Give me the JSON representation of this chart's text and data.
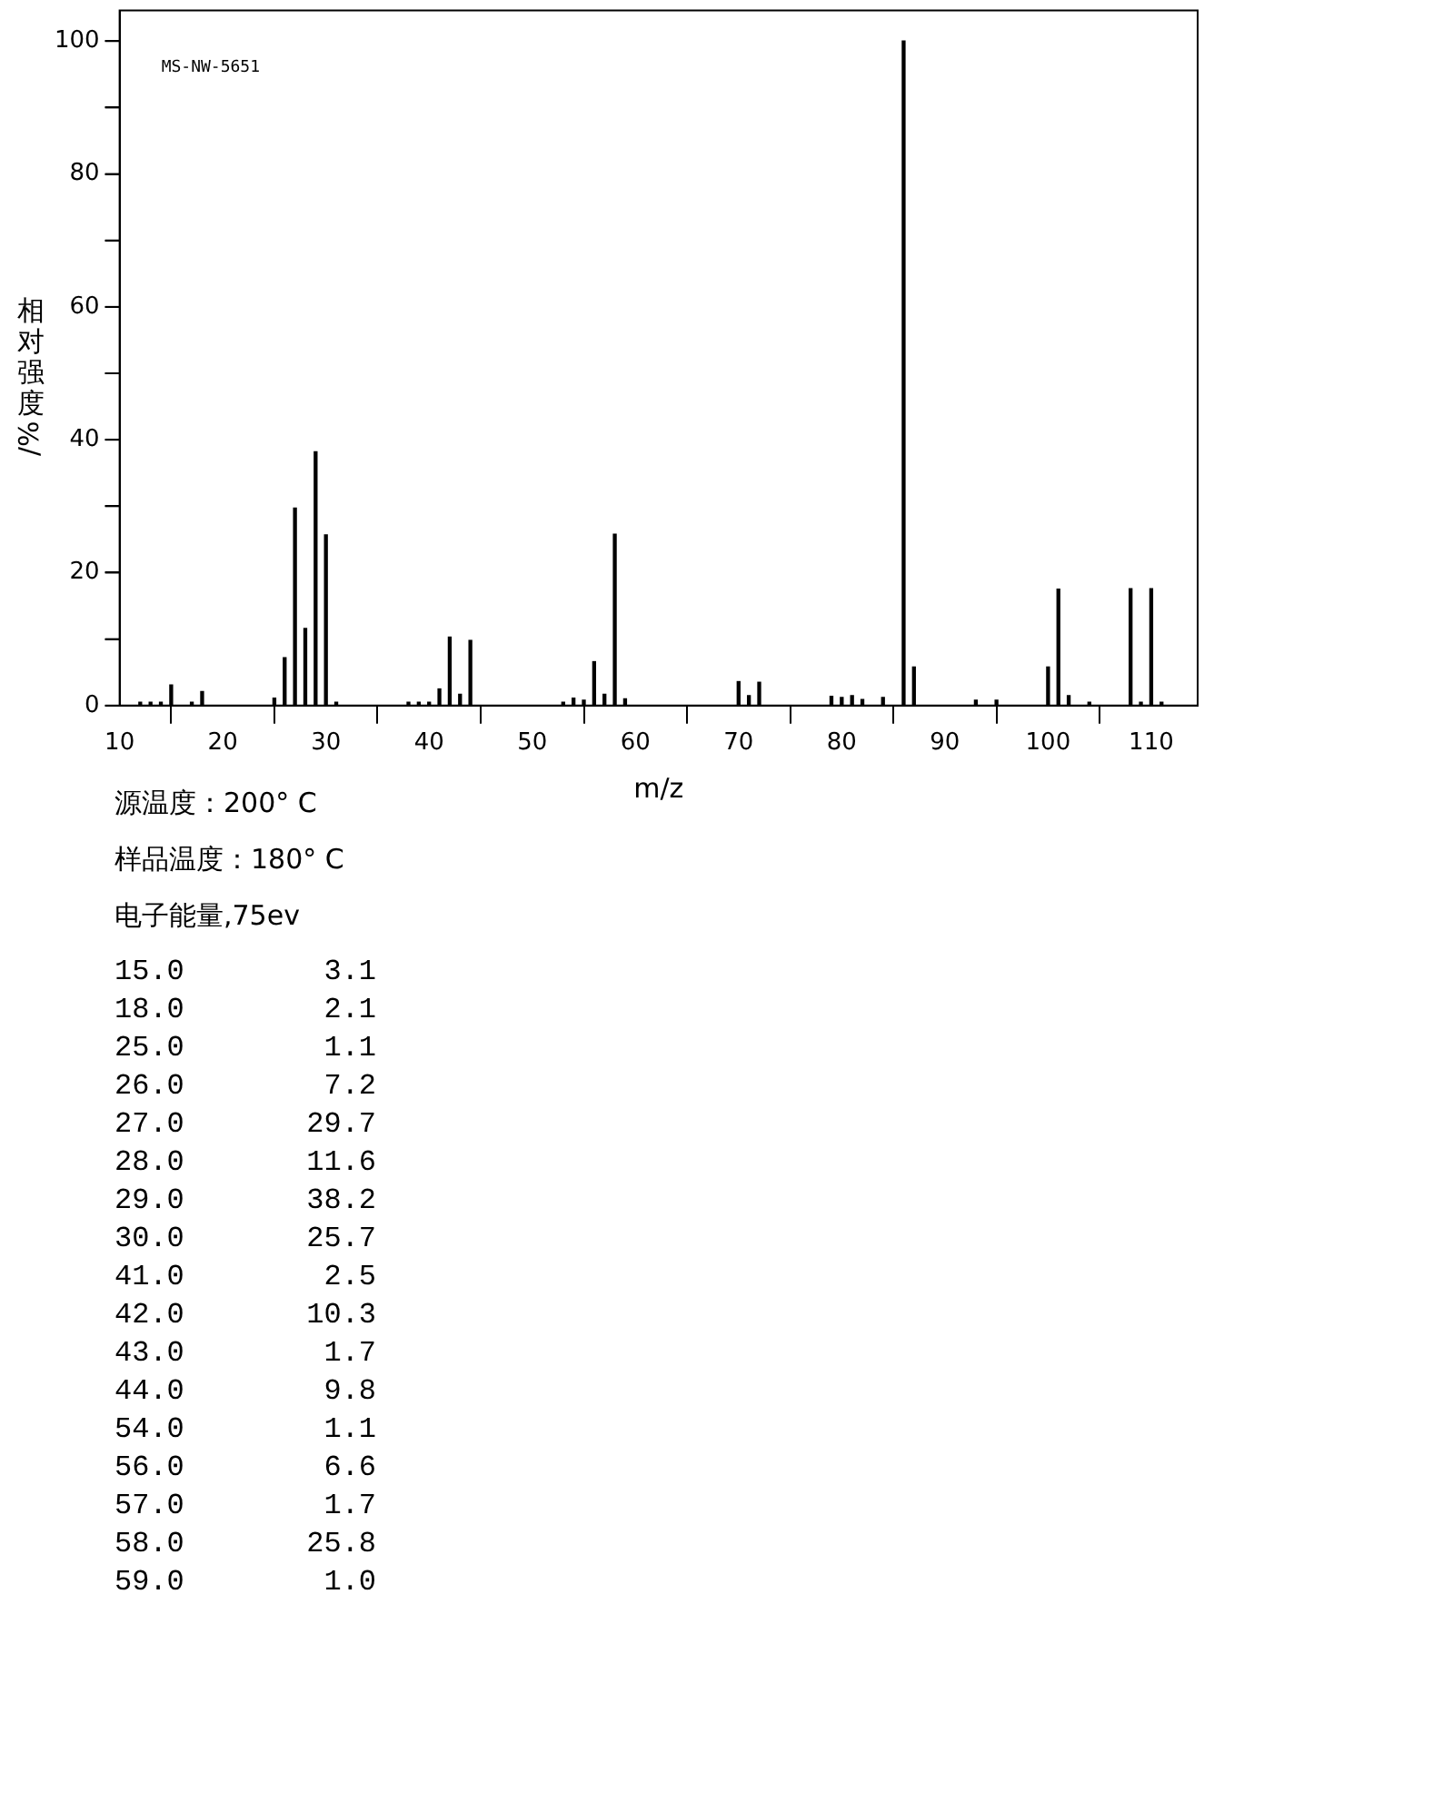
{
  "chart_data": {
    "type": "bar",
    "xlabel": "m/z",
    "ylabel": "相对强度/%",
    "x": [
      12,
      13,
      14,
      15,
      17,
      18,
      25,
      26,
      27,
      28,
      29,
      30,
      31,
      38,
      39,
      40,
      41,
      42,
      43,
      44,
      53,
      54,
      55,
      56,
      57,
      58,
      59,
      70,
      71,
      72,
      79,
      80,
      81,
      82,
      84,
      86,
      87,
      93,
      95,
      100,
      101,
      102,
      104,
      108,
      109,
      110,
      111
    ],
    "values": [
      0.5,
      0.5,
      0.5,
      3.1,
      0.5,
      2.1,
      1.1,
      7.2,
      29.7,
      11.6,
      38.2,
      25.7,
      0.5,
      0.5,
      0.5,
      0.5,
      2.5,
      10.3,
      1.7,
      9.8,
      0.5,
      1.1,
      0.8,
      6.6,
      1.7,
      25.8,
      1.0,
      3.6,
      1.5,
      3.5,
      1.4,
      1.2,
      1.5,
      0.9,
      1.2,
      100,
      5.8,
      0.8,
      0.8,
      5.8,
      17.5,
      1.5,
      0.5,
      17.6,
      0.5,
      17.6,
      0.5
    ],
    "color": "#000000",
    "xlim": [
      10,
      114.5
    ],
    "xticks": [
      10,
      20,
      30,
      40,
      50,
      60,
      70,
      80,
      90,
      100,
      110
    ],
    "ylim": [
      0,
      104.6
    ],
    "yticks": [
      0,
      {
        "value": 10,
        "label": null
      },
      20,
      {
        "value": 30,
        "label": null
      },
      40,
      {
        "value": 50,
        "label": null
      },
      60,
      {
        "value": 70,
        "label": null
      },
      80,
      {
        "value": 90,
        "label": null
      },
      100
    ],
    "grid": false,
    "legend": false,
    "annotations": [
      "MS-NW-5651",
      "源温度：200° C",
      "样品温度：180° C",
      "电子能量,75ev",
      "15.0        3.1",
      "18.0        2.1",
      "25.0        1.1",
      "26.0        7.2",
      "27.0       29.7",
      "28.0       11.6",
      "29.0       38.2",
      "30.0       25.7",
      "41.0        2.5",
      "42.0       10.3",
      "43.0        1.7",
      "44.0        9.8",
      "54.0        1.1",
      "56.0        6.6",
      "57.0        1.7",
      "58.0       25.8",
      "59.0        1.0"
    ]
  }
}
